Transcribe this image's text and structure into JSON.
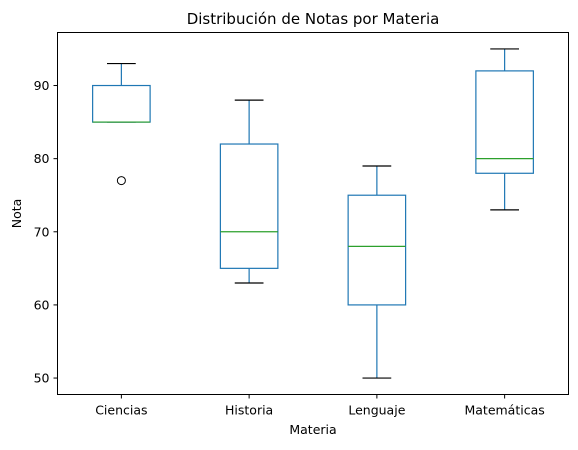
{
  "chart_data": {
    "type": "box",
    "title": "Distribución de Notas por Materia",
    "xlabel": "Materia",
    "ylabel": "Nota",
    "ylim": [
      47.75,
      97.25
    ],
    "yticks": [
      50,
      60,
      70,
      80,
      90
    ],
    "categories": [
      "Ciencias",
      "Historia",
      "Lenguaje",
      "Matemáticas"
    ],
    "boxes": [
      {
        "name": "Ciencias",
        "whisker_low": 85,
        "q1": 85,
        "median": 85,
        "q3": 90,
        "whisker_high": 93,
        "outliers": [
          77
        ]
      },
      {
        "name": "Historia",
        "whisker_low": 63,
        "q1": 65,
        "median": 70,
        "q3": 82,
        "whisker_high": 88,
        "outliers": []
      },
      {
        "name": "Lenguaje",
        "whisker_low": 50,
        "q1": 60,
        "median": 68,
        "q3": 75,
        "whisker_high": 79,
        "outliers": []
      },
      {
        "name": "Matemáticas",
        "whisker_low": 73,
        "q1": 78,
        "median": 80,
        "q3": 92,
        "whisker_high": 95,
        "outliers": []
      }
    ],
    "grid": false,
    "colors": {
      "box": "#1f77b4",
      "median": "#2ca02c",
      "whisker": "#1f77b4",
      "cap": "#000000",
      "outlier": "#000000"
    }
  }
}
